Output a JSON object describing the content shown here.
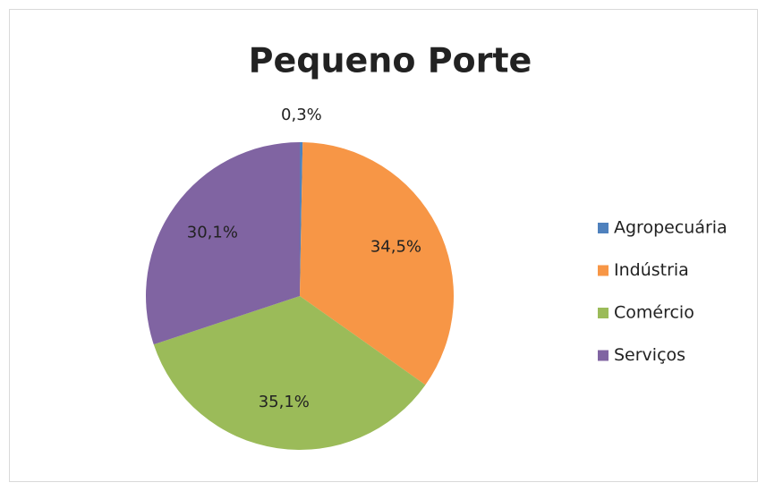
{
  "chart_data": {
    "type": "pie",
    "title": "Pequeno Porte",
    "categories": [
      "Agropecuária",
      "Indústria",
      "Comércio",
      "Serviços"
    ],
    "values": [
      0.3,
      34.5,
      35.1,
      30.1
    ],
    "value_labels": [
      "0,3%",
      "34,5%",
      "35,1%",
      "30,1%"
    ],
    "colors": [
      "#4f81bd",
      "#f79646",
      "#9bbb59",
      "#8064a2"
    ],
    "legend": "right"
  }
}
